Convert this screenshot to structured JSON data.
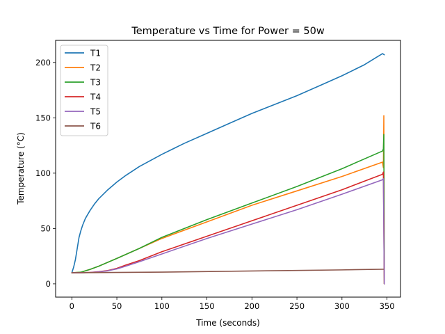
{
  "chart_data": {
    "type": "line",
    "title": "Temperature vs Time for Power = 50w",
    "xlabel": "Time (seconds)",
    "ylabel": "Temperature (°C)",
    "xlim": [
      -18,
      365
    ],
    "ylim": [
      -12,
      220
    ],
    "xticks": [
      0,
      50,
      100,
      150,
      200,
      250,
      300,
      350
    ],
    "yticks": [
      0,
      50,
      100,
      150,
      200
    ],
    "grid": false,
    "legend_position": "top-left",
    "series": [
      {
        "name": "T1",
        "color": "#1f77b4",
        "x": [
          0,
          2,
          4,
          6,
          8,
          10,
          12,
          15,
          20,
          25,
          30,
          40,
          50,
          60,
          75,
          100,
          125,
          150,
          175,
          200,
          225,
          250,
          275,
          300,
          325,
          345,
          347
        ],
        "y": [
          10,
          15,
          22,
          32,
          42,
          48,
          53,
          59,
          66,
          72,
          77,
          85,
          92,
          98,
          106,
          117,
          127,
          136,
          145,
          154,
          162,
          170,
          179,
          188,
          198,
          208,
          207
        ]
      },
      {
        "name": "T2",
        "color": "#ff7f0e",
        "x": [
          0,
          10,
          20,
          30,
          50,
          75,
          100,
          150,
          200,
          250,
          300,
          345,
          346,
          346.5,
          347
        ],
        "y": [
          10,
          10.5,
          13,
          16,
          23,
          32,
          41,
          56,
          71,
          84,
          97,
          110,
          105,
          152,
          0
        ]
      },
      {
        "name": "T3",
        "color": "#2ca02c",
        "x": [
          0,
          10,
          20,
          30,
          50,
          75,
          100,
          150,
          200,
          250,
          300,
          345,
          346,
          346.5,
          347
        ],
        "y": [
          10,
          10.5,
          13,
          16,
          23,
          32,
          42,
          58,
          73,
          88,
          104,
          120,
          122,
          135,
          0
        ]
      },
      {
        "name": "T4",
        "color": "#d62728",
        "x": [
          0,
          10,
          20,
          30,
          40,
          50,
          60,
          75,
          100,
          150,
          200,
          250,
          300,
          345,
          346,
          347
        ],
        "y": [
          10,
          10,
          10.3,
          11,
          12,
          14,
          17,
          21,
          29,
          43,
          57,
          71,
          85,
          99,
          101,
          0
        ]
      },
      {
        "name": "T5",
        "color": "#9467bd",
        "x": [
          0,
          10,
          20,
          30,
          40,
          50,
          60,
          75,
          100,
          150,
          200,
          250,
          300,
          345,
          346,
          347
        ],
        "y": [
          10,
          10,
          10.2,
          10.8,
          11.8,
          13.5,
          16,
          20,
          27,
          41,
          54,
          67,
          81,
          94,
          95,
          0
        ]
      },
      {
        "name": "T6",
        "color": "#8c564b",
        "x": [
          0,
          100,
          200,
          300,
          345,
          346
        ],
        "y": [
          10,
          10.6,
          11.6,
          12.6,
          13.2,
          13.2
        ]
      }
    ]
  }
}
